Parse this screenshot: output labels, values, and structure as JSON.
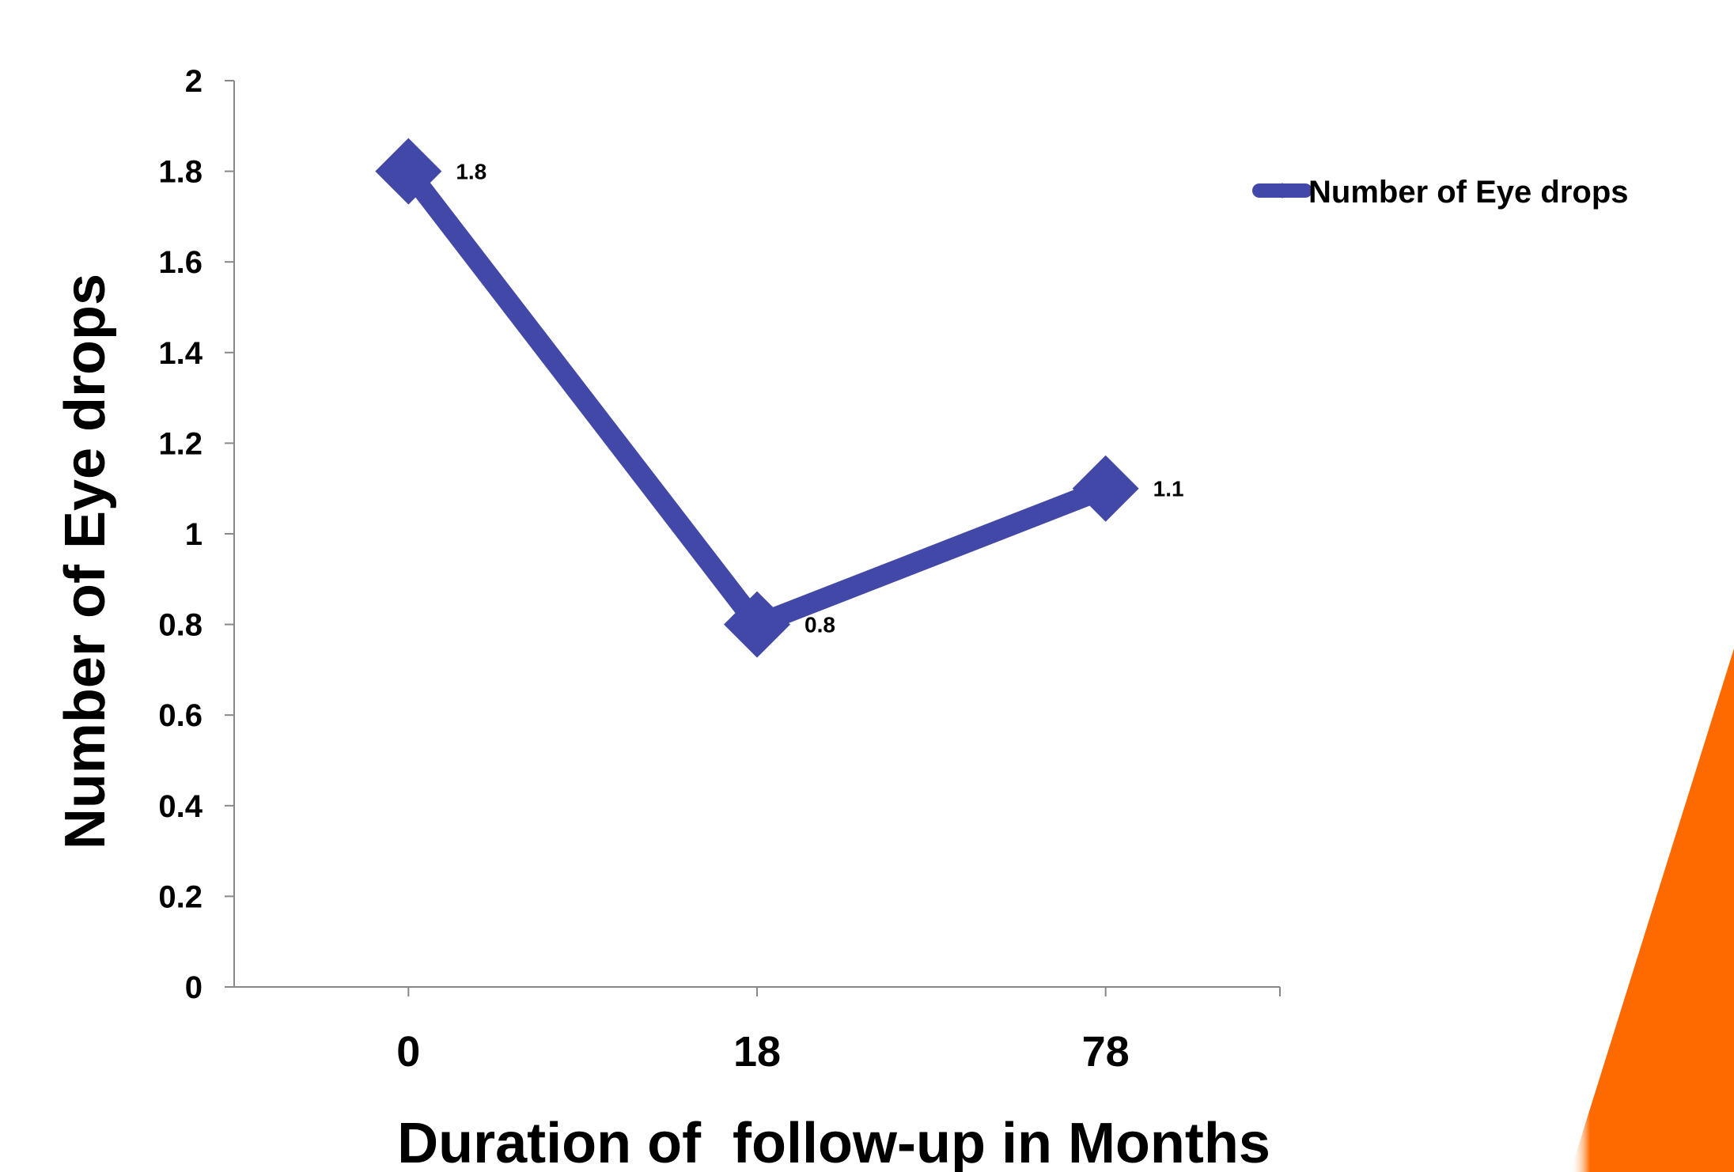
{
  "chart_data": {
    "type": "line",
    "categories": [
      "0",
      "18",
      "78"
    ],
    "series": [
      {
        "name": "Number of Eye drops",
        "values": [
          1.8,
          0.8,
          1.1
        ],
        "labels": [
          "1.8",
          "0.8",
          "1.1"
        ]
      }
    ],
    "xlabel": "Duration of  follow-up in Months",
    "ylabel": "Number of Eye drops",
    "ylim": [
      0,
      2
    ],
    "yticks": [
      "0",
      "0.2",
      "0.4",
      "0.6",
      "0.8",
      "1",
      "1.2",
      "1.4",
      "1.6",
      "1.8",
      "2"
    ],
    "grid": false,
    "legend_position": "top-right",
    "marker": "diamond",
    "colors": {
      "series": "#4248a8",
      "axis": "#888888",
      "accent": "#ff6a00"
    }
  }
}
